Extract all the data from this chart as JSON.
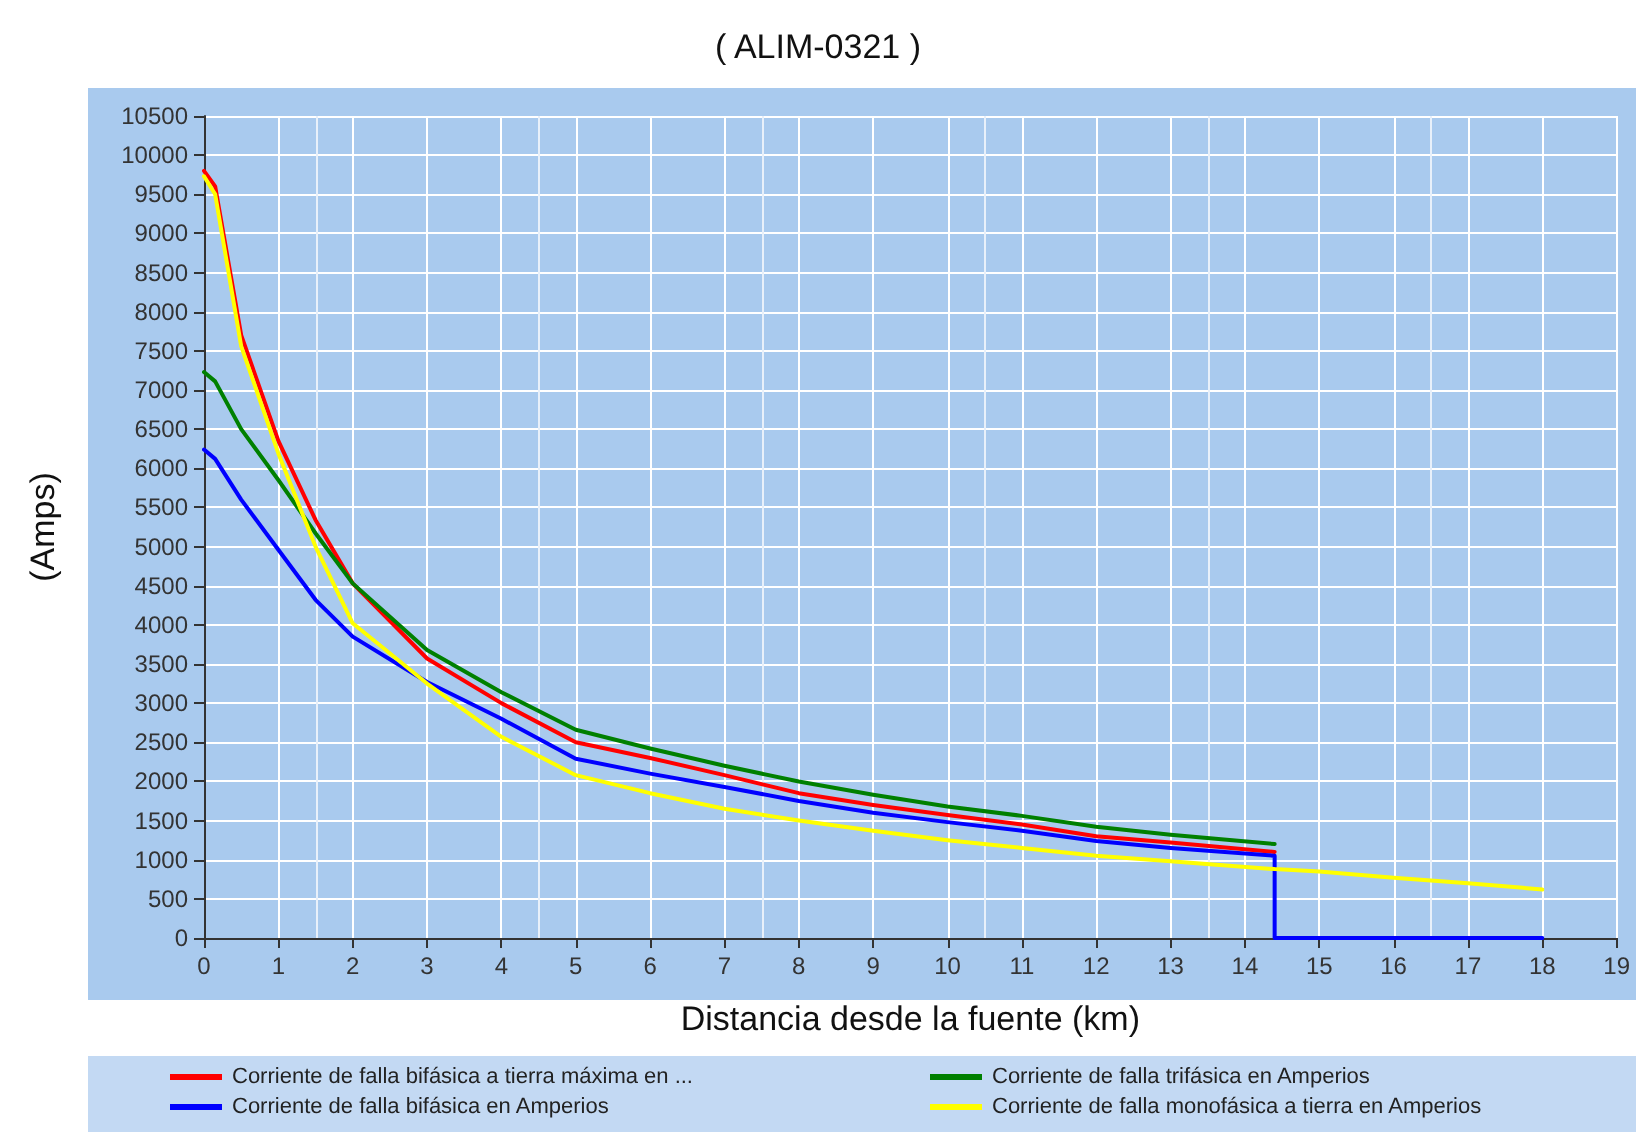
{
  "chart_data": {
    "type": "line",
    "title": "( ALIM-0321 )",
    "xlabel": "Distancia desde la fuente (km)",
    "ylabel": "(Amps)",
    "xlim": [
      0,
      19
    ],
    "xticks": [
      0,
      1,
      2,
      3,
      4,
      5,
      6,
      7,
      8,
      9,
      10,
      11,
      12,
      13,
      14,
      15,
      16,
      17,
      18,
      19
    ],
    "ylim": [
      0,
      10500
    ],
    "yticks": [
      0,
      500,
      1000,
      1500,
      2000,
      2500,
      3000,
      3500,
      4000,
      4500,
      5000,
      5500,
      6000,
      6500,
      7000,
      7500,
      8000,
      8500,
      9000,
      9500,
      10000,
      10500
    ],
    "grid": true,
    "legend": "bottom",
    "marker": "none",
    "line_style": "solid",
    "series": [
      {
        "name": "Corriente de falla bifásica a tierra máxima en ...",
        "color": "#ff0000",
        "x": [
          0,
          0.15,
          0.5,
          1,
          1.5,
          2,
          3,
          4,
          5,
          6,
          7,
          8,
          9,
          10,
          11,
          12,
          13,
          14.4
        ],
        "values": [
          9800,
          9600,
          7700,
          6350,
          5340,
          4530,
          3570,
          3000,
          2500,
          2300,
          2080,
          1850,
          1700,
          1570,
          1450,
          1300,
          1220,
          1100
        ]
      },
      {
        "name": "Corriente de falla trifásica en Amperios",
        "color": "#008000",
        "x": [
          0,
          0.15,
          0.5,
          1,
          1.5,
          2,
          3,
          4,
          5,
          6,
          7,
          8,
          9,
          10,
          11,
          12,
          13,
          14.4
        ],
        "values": [
          7230,
          7110,
          6500,
          5850,
          5170,
          4530,
          3680,
          3140,
          2660,
          2420,
          2200,
          2000,
          1830,
          1680,
          1560,
          1420,
          1320,
          1200
        ]
      },
      {
        "name": "Corriente de falla bifásica en Amperios",
        "color": "#0000ff",
        "x": [
          0,
          0.15,
          0.5,
          1,
          1.5,
          2,
          3,
          4,
          5,
          6,
          7,
          8,
          9,
          10,
          11,
          12,
          13,
          14.4,
          14.4,
          18
        ],
        "values": [
          6240,
          6120,
          5600,
          4960,
          4320,
          3850,
          3270,
          2800,
          2290,
          2100,
          1930,
          1750,
          1600,
          1480,
          1370,
          1240,
          1150,
          1050,
          0,
          0
        ]
      },
      {
        "name": "Corriente de falla monofásica a tierra en Amperios",
        "color": "#ffff00",
        "x": [
          0,
          0.15,
          0.5,
          1,
          1.5,
          2,
          3,
          4,
          5,
          6,
          7,
          8,
          9,
          10,
          11,
          12,
          13,
          14.4,
          15,
          16,
          17,
          18
        ],
        "values": [
          9730,
          9500,
          7560,
          6190,
          5000,
          4020,
          3250,
          2570,
          2080,
          1850,
          1650,
          1500,
          1370,
          1250,
          1150,
          1050,
          980,
          880,
          850,
          770,
          700,
          620
        ]
      }
    ]
  }
}
